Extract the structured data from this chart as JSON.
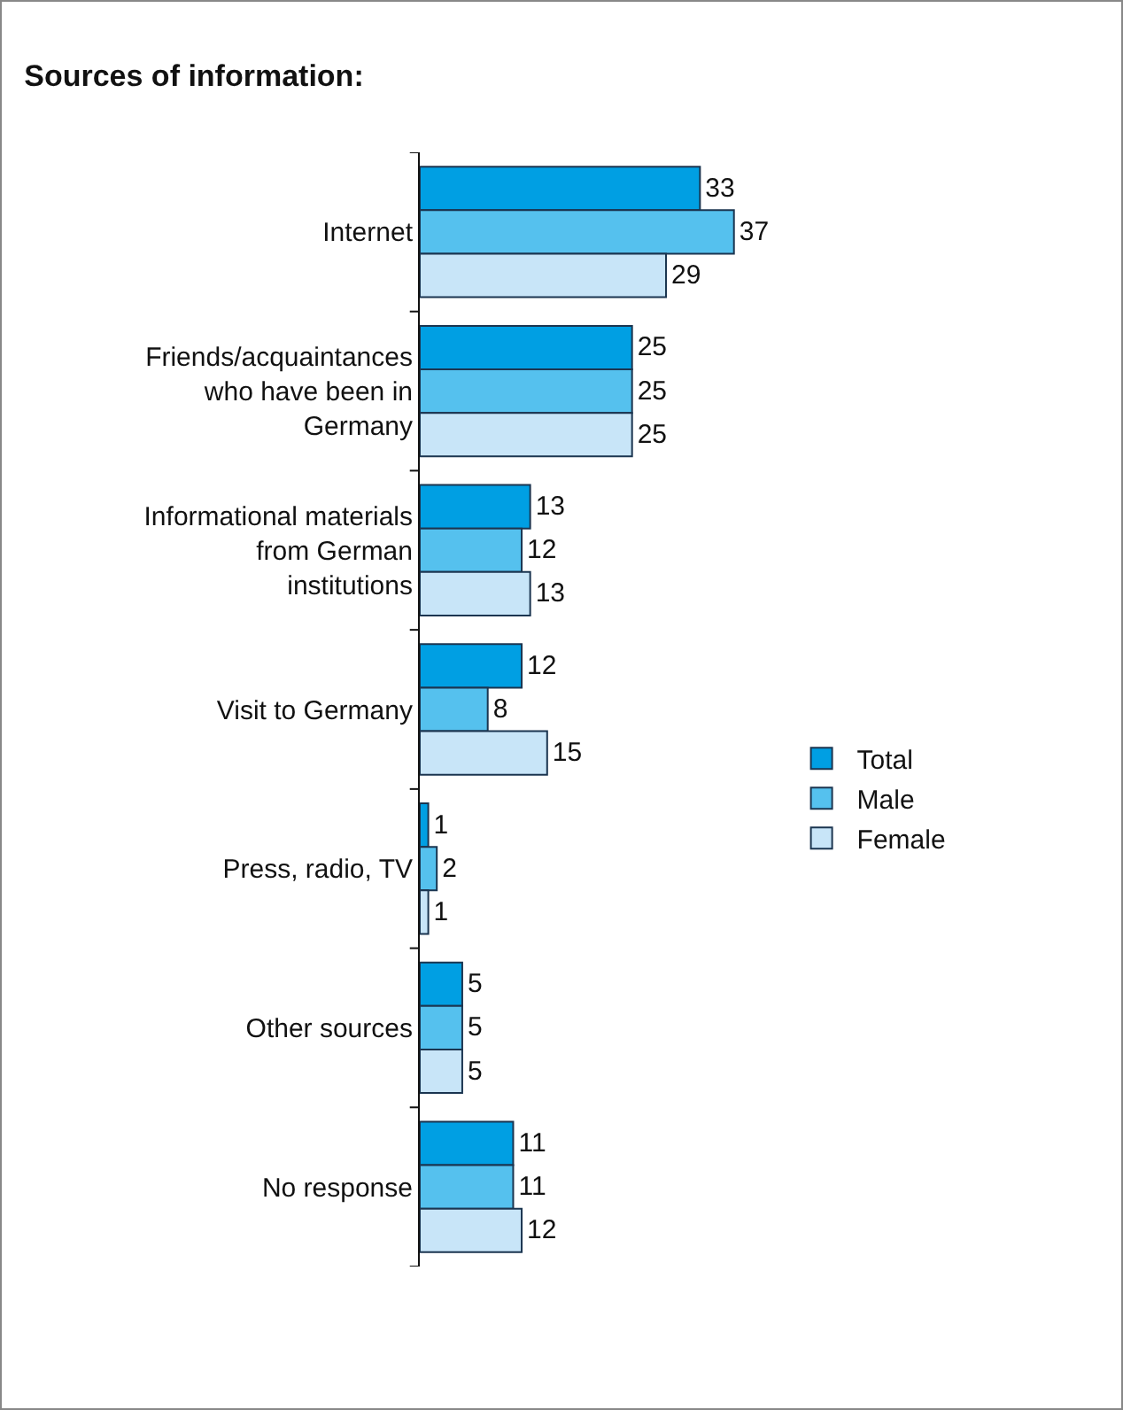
{
  "chart_data": {
    "type": "bar",
    "orientation": "horizontal",
    "title": "Sources of information:",
    "categories": [
      "Internet",
      "Friends/acquaintances who have been in Germany",
      "Informational materials from German institutions",
      "Visit to Germany",
      "Press, radio, TV",
      "Other sources",
      "No response"
    ],
    "series": [
      {
        "name": "Total",
        "color": "#009fe3",
        "values": [
          33,
          25,
          13,
          12,
          1,
          5,
          11
        ]
      },
      {
        "name": "Male",
        "color": "#55c1ee",
        "values": [
          37,
          25,
          12,
          8,
          2,
          5,
          11
        ]
      },
      {
        "name": "Female",
        "color": "#c8e5f8",
        "values": [
          29,
          25,
          13,
          15,
          1,
          5,
          12
        ]
      }
    ],
    "data_labels": true,
    "legend": "right",
    "grid": false
  }
}
